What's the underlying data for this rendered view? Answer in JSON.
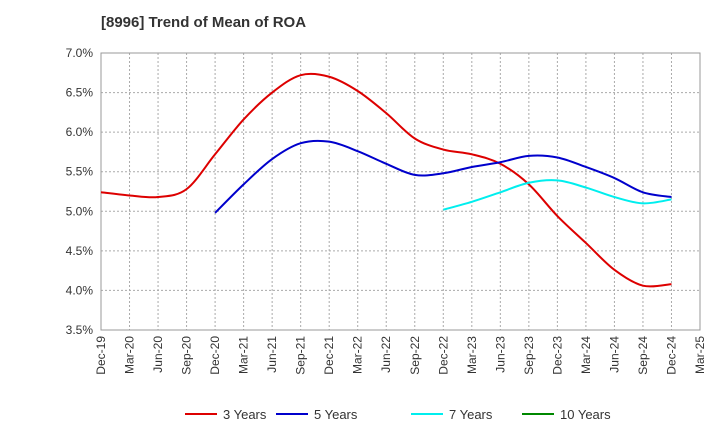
{
  "chart_data": {
    "type": "line",
    "title": "[8996]  Trend of Mean of ROA",
    "xlabel": "",
    "ylabel": "",
    "x_ticks": [
      "Dec-19",
      "Mar-20",
      "Jun-20",
      "Sep-20",
      "Dec-20",
      "Mar-21",
      "Jun-21",
      "Sep-21",
      "Dec-21",
      "Mar-22",
      "Jun-22",
      "Sep-22",
      "Dec-22",
      "Mar-23",
      "Jun-23",
      "Sep-23",
      "Dec-23",
      "Mar-24",
      "Jun-24",
      "Sep-24",
      "Dec-24",
      "Mar-25"
    ],
    "y_ticks": [
      "3.5%",
      "4.0%",
      "4.5%",
      "5.0%",
      "5.5%",
      "6.0%",
      "6.5%",
      "7.0%"
    ],
    "ylim": [
      3.5,
      7.0
    ],
    "grid": true,
    "legend_position": "bottom",
    "series": [
      {
        "name": "3 Years",
        "color": "#dd0000",
        "points": [
          [
            0,
            5.24
          ],
          [
            1,
            5.2
          ],
          [
            2,
            5.18
          ],
          [
            3,
            5.28
          ],
          [
            4,
            5.72
          ],
          [
            5,
            6.16
          ],
          [
            6,
            6.5
          ],
          [
            7,
            6.72
          ],
          [
            8,
            6.7
          ],
          [
            9,
            6.52
          ],
          [
            10,
            6.24
          ],
          [
            11,
            5.92
          ],
          [
            12,
            5.78
          ],
          [
            13,
            5.72
          ],
          [
            14,
            5.6
          ],
          [
            15,
            5.34
          ],
          [
            16,
            4.94
          ],
          [
            17,
            4.6
          ],
          [
            18,
            4.26
          ],
          [
            19,
            4.06
          ],
          [
            20,
            4.08
          ]
        ]
      },
      {
        "name": "5 Years",
        "color": "#0000cc",
        "points": [
          [
            4,
            4.98
          ],
          [
            5,
            5.34
          ],
          [
            6,
            5.66
          ],
          [
            7,
            5.86
          ],
          [
            8,
            5.88
          ],
          [
            9,
            5.76
          ],
          [
            10,
            5.6
          ],
          [
            11,
            5.46
          ],
          [
            12,
            5.48
          ],
          [
            13,
            5.56
          ],
          [
            14,
            5.62
          ],
          [
            15,
            5.7
          ],
          [
            16,
            5.68
          ],
          [
            17,
            5.56
          ],
          [
            18,
            5.42
          ],
          [
            19,
            5.24
          ],
          [
            20,
            5.18
          ]
        ]
      },
      {
        "name": "7 Years",
        "color": "#00eeee",
        "points": [
          [
            12,
            5.02
          ],
          [
            13,
            5.12
          ],
          [
            14,
            5.24
          ],
          [
            15,
            5.36
          ],
          [
            16,
            5.39
          ],
          [
            17,
            5.3
          ],
          [
            18,
            5.18
          ],
          [
            19,
            5.1
          ],
          [
            20,
            5.15
          ]
        ]
      },
      {
        "name": "10 Years",
        "color": "#008800",
        "points": []
      }
    ]
  }
}
